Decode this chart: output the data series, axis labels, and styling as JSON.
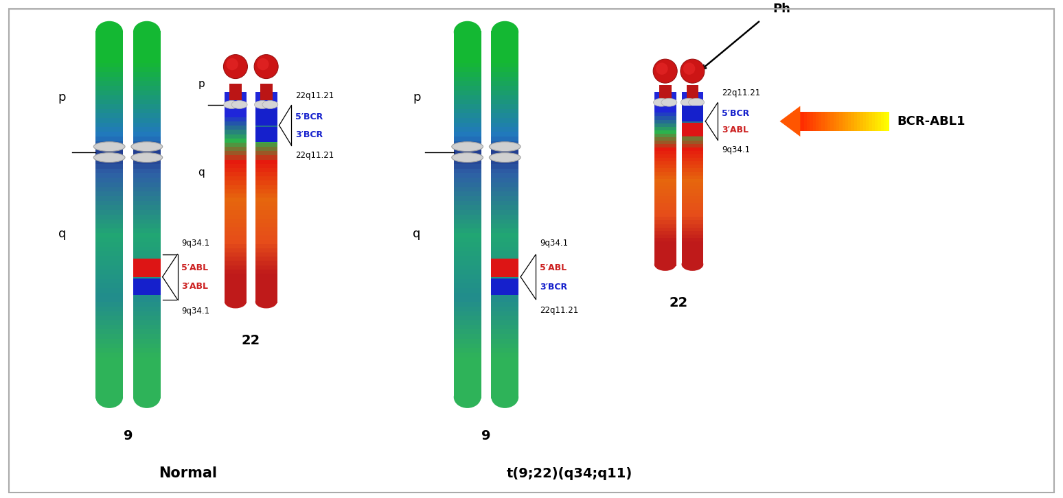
{
  "bg_color": "#ffffff",
  "normal_label": "Normal",
  "translocation_label": "t(9;22)(q34;q11)",
  "chr9_label": "9",
  "chr22_label": "22",
  "p_label": "p",
  "q_label": "q",
  "ph_label": "Ph",
  "bcr_abl1_label": "BCR-ABL1",
  "labels_normal_9": {
    "top": "9q34.1",
    "abl5": "5′ABL",
    "abl3": "3′ABL",
    "bot": "9q34.1"
  },
  "labels_normal_22": {
    "top": "22q11.21",
    "bcr5": "5′BCR",
    "bcr3": "3′BCR",
    "bot": "22q11.21"
  },
  "labels_trans_9": {
    "top": "9q34.1",
    "abl5": "5′ABL",
    "bcr3": "3′BCR",
    "bot": "22q11.21"
  },
  "labels_trans_22": {
    "top": "22q11.21",
    "bcr5": "5′BCR",
    "abl3": "3′ABL",
    "bot": "9q34.1"
  }
}
